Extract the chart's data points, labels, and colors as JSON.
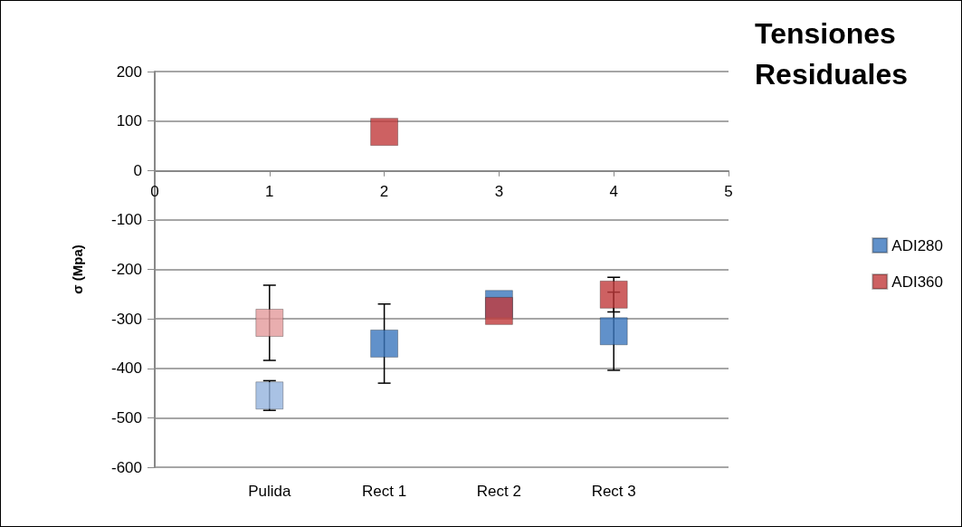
{
  "chart_data": {
    "type": "scatter",
    "title": "Tensiones Residuales",
    "ylabel": "σ (Mpa)",
    "categories": [
      "Pulida",
      "Rect 1",
      "Rect 2",
      "Rect 3"
    ],
    "series": [
      {
        "name": "ADI280",
        "color": "#3a76bd",
        "colors": [
          "#93b3dd",
          "#3a76bd",
          "#3a76bd",
          "#3a76bd"
        ],
        "values": [
          -455,
          -350,
          -270,
          -325
        ],
        "errors": [
          30,
          80,
          null,
          79
        ]
      },
      {
        "name": "ADI360",
        "color": "#c0393b",
        "colors": [
          "#e39a9b",
          "#c0393b",
          "#c0393b",
          "#c0393b"
        ],
        "values": [
          -308,
          78,
          -284,
          -251
        ],
        "errors": [
          76,
          null,
          null,
          35
        ]
      }
    ],
    "x2lim": [
      0,
      5
    ],
    "x2ticks": [
      0,
      1,
      2,
      3,
      4,
      5
    ],
    "ylim": [
      -600,
      200
    ],
    "yticks": [
      -600,
      -500,
      -400,
      -300,
      -200,
      -100,
      0,
      100,
      200
    ],
    "grid": "y",
    "legend": "right",
    "marker": "square"
  }
}
